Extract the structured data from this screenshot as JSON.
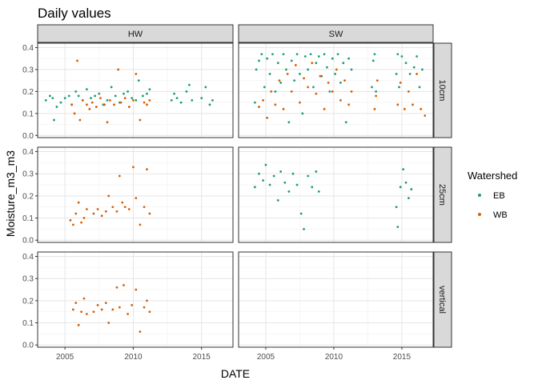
{
  "chart_data": {
    "type": "scatter",
    "title": "Daily values",
    "xlabel": "DATE",
    "ylabel": "Moisture_m3_m3",
    "xlim": [
      2003.0,
      2017.3
    ],
    "ylim": [
      -0.01,
      0.42
    ],
    "x_ticks": [
      2005,
      2010,
      2015
    ],
    "y_ticks": [
      0.0,
      0.1,
      0.2,
      0.3,
      0.4
    ],
    "y_tick_labels": [
      "0.0",
      "0.1",
      "0.2",
      "0.3",
      "0.4"
    ],
    "x_tick_labels": [
      "2005",
      "2010",
      "2015"
    ],
    "grid": true,
    "facet_columns": [
      "HW",
      "SW"
    ],
    "facet_rows": [
      "10cm",
      "25cm",
      "vertical"
    ],
    "legend": {
      "title": "Watershed",
      "position": "right",
      "entries": [
        {
          "name": "EB",
          "color": "#1b9e77"
        },
        {
          "name": "WB",
          "color": "#d95f02"
        }
      ]
    },
    "series": [
      {
        "name": "EB",
        "color": "#1b9e77",
        "facets": {
          "HW|10cm": [
            [
              2003.6,
              0.16
            ],
            [
              2003.9,
              0.18
            ],
            [
              2004.1,
              0.17
            ],
            [
              2004.2,
              0.07
            ],
            [
              2004.4,
              0.13
            ],
            [
              2004.7,
              0.15
            ],
            [
              2005.0,
              0.17
            ],
            [
              2005.3,
              0.18
            ],
            [
              2005.5,
              0.14
            ],
            [
              2005.8,
              0.2
            ],
            [
              2006.0,
              0.18
            ],
            [
              2006.3,
              0.16
            ],
            [
              2006.6,
              0.21
            ],
            [
              2006.9,
              0.17
            ],
            [
              2007.2,
              0.18
            ],
            [
              2007.5,
              0.19
            ],
            [
              2007.8,
              0.14
            ],
            [
              2008.1,
              0.16
            ],
            [
              2008.4,
              0.22
            ],
            [
              2008.7,
              0.18
            ],
            [
              2009.0,
              0.15
            ],
            [
              2009.3,
              0.19
            ],
            [
              2009.6,
              0.2
            ],
            [
              2009.9,
              0.17
            ],
            [
              2010.2,
              0.16
            ],
            [
              2010.4,
              0.25
            ],
            [
              2010.7,
              0.18
            ],
            [
              2011.0,
              0.19
            ],
            [
              2011.2,
              0.21
            ],
            [
              2012.8,
              0.16
            ],
            [
              2013.0,
              0.19
            ],
            [
              2013.2,
              0.17
            ],
            [
              2013.5,
              0.15
            ],
            [
              2013.9,
              0.2
            ],
            [
              2014.1,
              0.23
            ],
            [
              2014.3,
              0.16
            ],
            [
              2015.0,
              0.17
            ],
            [
              2015.3,
              0.22
            ],
            [
              2015.6,
              0.14
            ],
            [
              2015.8,
              0.16
            ]
          ],
          "SW|10cm": [
            [
              2004.2,
              0.15
            ],
            [
              2004.3,
              0.3
            ],
            [
              2004.5,
              0.34
            ],
            [
              2004.7,
              0.37
            ],
            [
              2004.9,
              0.22
            ],
            [
              2005.1,
              0.35
            ],
            [
              2005.3,
              0.28
            ],
            [
              2005.5,
              0.37
            ],
            [
              2005.7,
              0.2
            ],
            [
              2005.9,
              0.33
            ],
            [
              2006.1,
              0.24
            ],
            [
              2006.3,
              0.37
            ],
            [
              2006.5,
              0.3
            ],
            [
              2006.7,
              0.06
            ],
            [
              2006.9,
              0.34
            ],
            [
              2007.1,
              0.25
            ],
            [
              2007.3,
              0.37
            ],
            [
              2007.5,
              0.28
            ],
            [
              2007.7,
              0.1
            ],
            [
              2007.9,
              0.36
            ],
            [
              2008.1,
              0.3
            ],
            [
              2008.3,
              0.37
            ],
            [
              2008.5,
              0.22
            ],
            [
              2008.7,
              0.33
            ],
            [
              2008.9,
              0.36
            ],
            [
              2009.1,
              0.27
            ],
            [
              2009.3,
              0.37
            ],
            [
              2009.5,
              0.31
            ],
            [
              2009.7,
              0.2
            ],
            [
              2009.9,
              0.35
            ],
            [
              2010.1,
              0.28
            ],
            [
              2010.3,
              0.37
            ],
            [
              2010.5,
              0.24
            ],
            [
              2010.7,
              0.33
            ],
            [
              2010.9,
              0.06
            ],
            [
              2011.1,
              0.35
            ],
            [
              2011.3,
              0.3
            ],
            [
              2012.8,
              0.22
            ],
            [
              2012.9,
              0.34
            ],
            [
              2013.0,
              0.37
            ],
            [
              2013.1,
              0.2
            ],
            [
              2014.6,
              0.28
            ],
            [
              2014.7,
              0.37
            ],
            [
              2014.8,
              0.22
            ],
            [
              2015.0,
              0.36
            ],
            [
              2015.3,
              0.33
            ],
            [
              2015.6,
              0.28
            ],
            [
              2015.9,
              0.31
            ],
            [
              2016.1,
              0.36
            ],
            [
              2016.3,
              0.22
            ],
            [
              2016.5,
              0.3
            ]
          ],
          "SW|25cm": [
            [
              2004.2,
              0.24
            ],
            [
              2004.5,
              0.3
            ],
            [
              2004.8,
              0.27
            ],
            [
              2005.0,
              0.34
            ],
            [
              2005.3,
              0.25
            ],
            [
              2005.6,
              0.29
            ],
            [
              2005.9,
              0.18
            ],
            [
              2006.1,
              0.31
            ],
            [
              2006.4,
              0.26
            ],
            [
              2006.7,
              0.22
            ],
            [
              2007.0,
              0.3
            ],
            [
              2007.3,
              0.25
            ],
            [
              2007.6,
              0.12
            ],
            [
              2007.8,
              0.05
            ],
            [
              2008.1,
              0.29
            ],
            [
              2008.4,
              0.24
            ],
            [
              2008.7,
              0.31
            ],
            [
              2008.9,
              0.22
            ],
            [
              2014.6,
              0.15
            ],
            [
              2014.7,
              0.06
            ],
            [
              2014.9,
              0.24
            ],
            [
              2015.1,
              0.32
            ],
            [
              2015.3,
              0.26
            ],
            [
              2015.5,
              0.19
            ],
            [
              2015.7,
              0.23
            ]
          ]
        }
      },
      {
        "name": "WB",
        "color": "#d95f02",
        "facets": {
          "HW|10cm": [
            [
              2005.5,
              0.14
            ],
            [
              2005.7,
              0.1
            ],
            [
              2005.9,
              0.34
            ],
            [
              2006.1,
              0.07
            ],
            [
              2006.3,
              0.16
            ],
            [
              2006.6,
              0.14
            ],
            [
              2006.8,
              0.12
            ],
            [
              2007.0,
              0.15
            ],
            [
              2007.3,
              0.13
            ],
            [
              2007.6,
              0.17
            ],
            [
              2007.9,
              0.14
            ],
            [
              2008.1,
              0.06
            ],
            [
              2008.3,
              0.16
            ],
            [
              2008.6,
              0.14
            ],
            [
              2008.9,
              0.3
            ],
            [
              2009.1,
              0.15
            ],
            [
              2009.4,
              0.17
            ],
            [
              2009.7,
              0.13
            ],
            [
              2010.0,
              0.16
            ],
            [
              2010.2,
              0.28
            ],
            [
              2010.5,
              0.07
            ],
            [
              2010.8,
              0.15
            ],
            [
              2011.0,
              0.14
            ],
            [
              2011.2,
              0.16
            ]
          ],
          "SW|10cm": [
            [
              2004.5,
              0.13
            ],
            [
              2004.8,
              0.16
            ],
            [
              2005.1,
              0.08
            ],
            [
              2005.4,
              0.2
            ],
            [
              2005.7,
              0.14
            ],
            [
              2006.0,
              0.25
            ],
            [
              2006.3,
              0.12
            ],
            [
              2006.6,
              0.28
            ],
            [
              2006.9,
              0.2
            ],
            [
              2007.2,
              0.32
            ],
            [
              2007.5,
              0.15
            ],
            [
              2007.8,
              0.26
            ],
            [
              2008.1,
              0.22
            ],
            [
              2008.4,
              0.33
            ],
            [
              2008.7,
              0.19
            ],
            [
              2009.0,
              0.27
            ],
            [
              2009.3,
              0.12
            ],
            [
              2009.6,
              0.24
            ],
            [
              2009.9,
              0.2
            ],
            [
              2010.2,
              0.3
            ],
            [
              2010.5,
              0.16
            ],
            [
              2010.8,
              0.25
            ],
            [
              2011.1,
              0.14
            ],
            [
              2011.3,
              0.2
            ],
            [
              2013.0,
              0.12
            ],
            [
              2013.1,
              0.18
            ],
            [
              2013.2,
              0.25
            ],
            [
              2014.7,
              0.14
            ],
            [
              2014.9,
              0.24
            ],
            [
              2015.2,
              0.12
            ],
            [
              2015.5,
              0.2
            ],
            [
              2015.8,
              0.14
            ],
            [
              2016.1,
              0.28
            ],
            [
              2016.4,
              0.12
            ],
            [
              2016.7,
              0.09
            ]
          ],
          "HW|25cm": [
            [
              2005.4,
              0.09
            ],
            [
              2005.6,
              0.07
            ],
            [
              2005.8,
              0.12
            ],
            [
              2006.0,
              0.17
            ],
            [
              2006.2,
              0.08
            ],
            [
              2006.4,
              0.1
            ],
            [
              2006.6,
              0.14
            ],
            [
              2007.1,
              0.12
            ],
            [
              2007.4,
              0.14
            ],
            [
              2007.7,
              0.11
            ],
            [
              2008.0,
              0.13
            ],
            [
              2008.2,
              0.2
            ],
            [
              2008.5,
              0.15
            ],
            [
              2008.8,
              0.13
            ],
            [
              2009.0,
              0.29
            ],
            [
              2009.2,
              0.17
            ],
            [
              2009.4,
              0.15
            ],
            [
              2009.7,
              0.14
            ],
            [
              2010.0,
              0.33
            ],
            [
              2010.2,
              0.19
            ],
            [
              2010.5,
              0.07
            ],
            [
              2010.8,
              0.15
            ],
            [
              2011.0,
              0.32
            ],
            [
              2011.2,
              0.12
            ]
          ],
          "HW|vertical": [
            [
              2005.6,
              0.16
            ],
            [
              2005.8,
              0.19
            ],
            [
              2006.0,
              0.09
            ],
            [
              2006.2,
              0.15
            ],
            [
              2006.4,
              0.21
            ],
            [
              2006.6,
              0.14
            ],
            [
              2007.1,
              0.15
            ],
            [
              2007.4,
              0.18
            ],
            [
              2007.7,
              0.16
            ],
            [
              2008.0,
              0.19
            ],
            [
              2008.2,
              0.1
            ],
            [
              2008.5,
              0.16
            ],
            [
              2008.8,
              0.26
            ],
            [
              2009.0,
              0.17
            ],
            [
              2009.3,
              0.27
            ],
            [
              2009.6,
              0.14
            ],
            [
              2009.9,
              0.18
            ],
            [
              2010.2,
              0.25
            ],
            [
              2010.5,
              0.06
            ],
            [
              2010.8,
              0.17
            ],
            [
              2011.0,
              0.2
            ],
            [
              2011.2,
              0.15
            ]
          ]
        }
      }
    ]
  }
}
